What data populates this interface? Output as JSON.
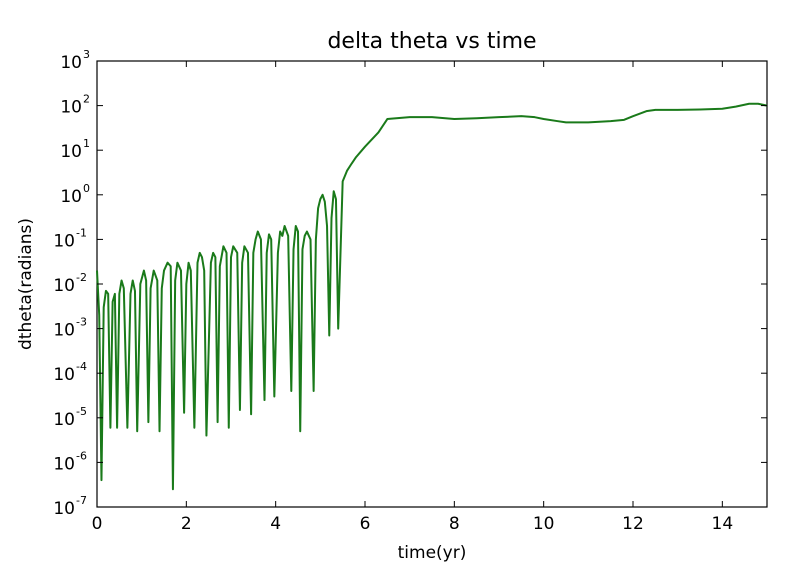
{
  "chart_data": {
    "type": "line",
    "title": "delta theta vs time",
    "xlabel": "time(yr)",
    "ylabel": "dtheta(radians)",
    "xlim": [
      0,
      15
    ],
    "ylim": [
      1e-07,
      1000
    ],
    "yscale": "log",
    "grid": false,
    "x_ticks": [
      "0",
      "2",
      "4",
      "6",
      "8",
      "10",
      "12",
      "14"
    ],
    "y_tick_base": "10",
    "y_tick_exponents": [
      "-7",
      "-6",
      "-5",
      "-4",
      "-3",
      "-2",
      "-1",
      "0",
      "1",
      "2",
      "3"
    ],
    "series": [
      {
        "color": "#1a7a1a",
        "x": [
          0.0,
          0.05,
          0.1,
          0.15,
          0.2,
          0.25,
          0.3,
          0.35,
          0.4,
          0.45,
          0.5,
          0.55,
          0.6,
          0.68,
          0.75,
          0.8,
          0.85,
          0.9,
          0.97,
          1.05,
          1.1,
          1.15,
          1.2,
          1.27,
          1.35,
          1.4,
          1.45,
          1.5,
          1.58,
          1.65,
          1.7,
          1.75,
          1.8,
          1.88,
          1.95,
          2.0,
          2.05,
          2.1,
          2.18,
          2.25,
          2.3,
          2.35,
          2.4,
          2.45,
          2.55,
          2.6,
          2.65,
          2.7,
          2.75,
          2.83,
          2.9,
          2.95,
          3.0,
          3.05,
          3.14,
          3.2,
          3.25,
          3.3,
          3.38,
          3.45,
          3.5,
          3.55,
          3.6,
          3.67,
          3.75,
          3.8,
          3.85,
          3.9,
          3.97,
          4.05,
          4.1,
          4.15,
          4.2,
          4.28,
          4.35,
          4.4,
          4.45,
          4.5,
          4.55,
          4.6,
          4.65,
          4.7,
          4.78,
          4.85,
          4.9,
          4.95,
          5.0,
          5.05,
          5.1,
          5.15,
          5.2,
          5.25,
          5.3,
          5.35,
          5.4,
          5.5,
          5.6,
          5.7,
          5.8,
          6.0,
          6.3,
          6.5,
          7.0,
          7.5,
          8.0,
          8.5,
          9.0,
          9.5,
          9.8,
          10.0,
          10.3,
          10.5,
          11.0,
          11.5,
          11.8,
          12.0,
          12.3,
          12.5,
          13.0,
          13.5,
          14.0,
          14.3,
          14.6,
          14.8,
          15.0
        ],
        "y": [
          0.02,
          0.002,
          4e-07,
          0.003,
          0.007,
          0.006,
          6e-06,
          0.004,
          0.006,
          6e-06,
          0.006,
          0.012,
          0.008,
          6e-06,
          0.006,
          0.012,
          0.007,
          5e-06,
          0.01,
          0.02,
          0.012,
          8e-06,
          0.008,
          0.02,
          0.012,
          5e-06,
          0.008,
          0.02,
          0.03,
          0.025,
          2.5e-07,
          0.012,
          0.03,
          0.02,
          1.3e-05,
          0.01,
          0.03,
          0.02,
          6e-06,
          0.03,
          0.05,
          0.04,
          0.02,
          4e-06,
          0.03,
          0.05,
          0.04,
          8e-06,
          0.025,
          0.07,
          0.05,
          6e-06,
          0.04,
          0.07,
          0.05,
          1.5e-05,
          0.03,
          0.07,
          0.05,
          1.2e-05,
          0.05,
          0.1,
          0.15,
          0.1,
          2.5e-05,
          0.05,
          0.13,
          0.1,
          3e-05,
          0.05,
          0.15,
          0.12,
          0.2,
          0.12,
          4e-05,
          0.06,
          0.2,
          0.15,
          5e-06,
          0.06,
          0.12,
          0.15,
          0.1,
          4e-05,
          0.1,
          0.5,
          0.8,
          1.0,
          0.7,
          0.2,
          0.0007,
          0.3,
          1.2,
          0.8,
          0.001,
          2.0,
          3.5,
          5.0,
          7.0,
          12.0,
          25.0,
          50.0,
          55.0,
          55.0,
          50.0,
          52.0,
          55.0,
          58.0,
          55.0,
          50.0,
          45.0,
          42.0,
          42.0,
          45.0,
          48.0,
          58.0,
          75.0,
          80.0,
          80.0,
          82.0,
          85.0,
          95.0,
          110.0,
          110.0,
          100.0
        ]
      }
    ]
  }
}
